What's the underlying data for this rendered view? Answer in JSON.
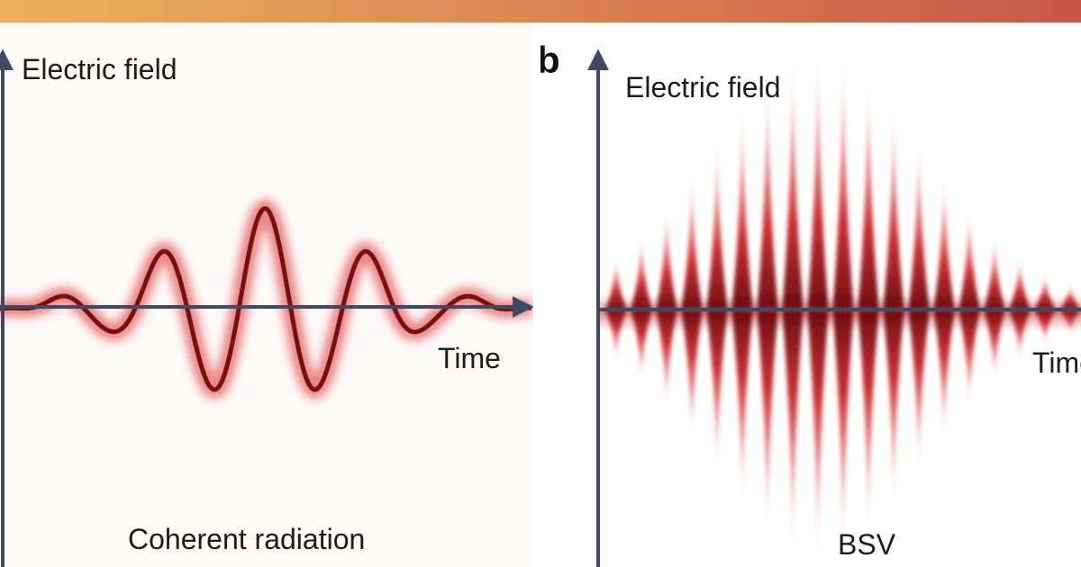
{
  "panels": [
    {
      "id": "a",
      "letter": "",
      "y_label": "Electric field",
      "x_label": "Time",
      "caption": "Coherent radiation"
    },
    {
      "id": "b",
      "letter": "b",
      "y_label": "Electric field",
      "x_label": "Time",
      "caption": "BSV"
    }
  ],
  "colors": {
    "banner_start": "#f0b060",
    "banner_end": "#c85648",
    "axis": "#3d4a62",
    "wave_core": "#7a0f12",
    "wave_glow": "#d9292c"
  }
}
